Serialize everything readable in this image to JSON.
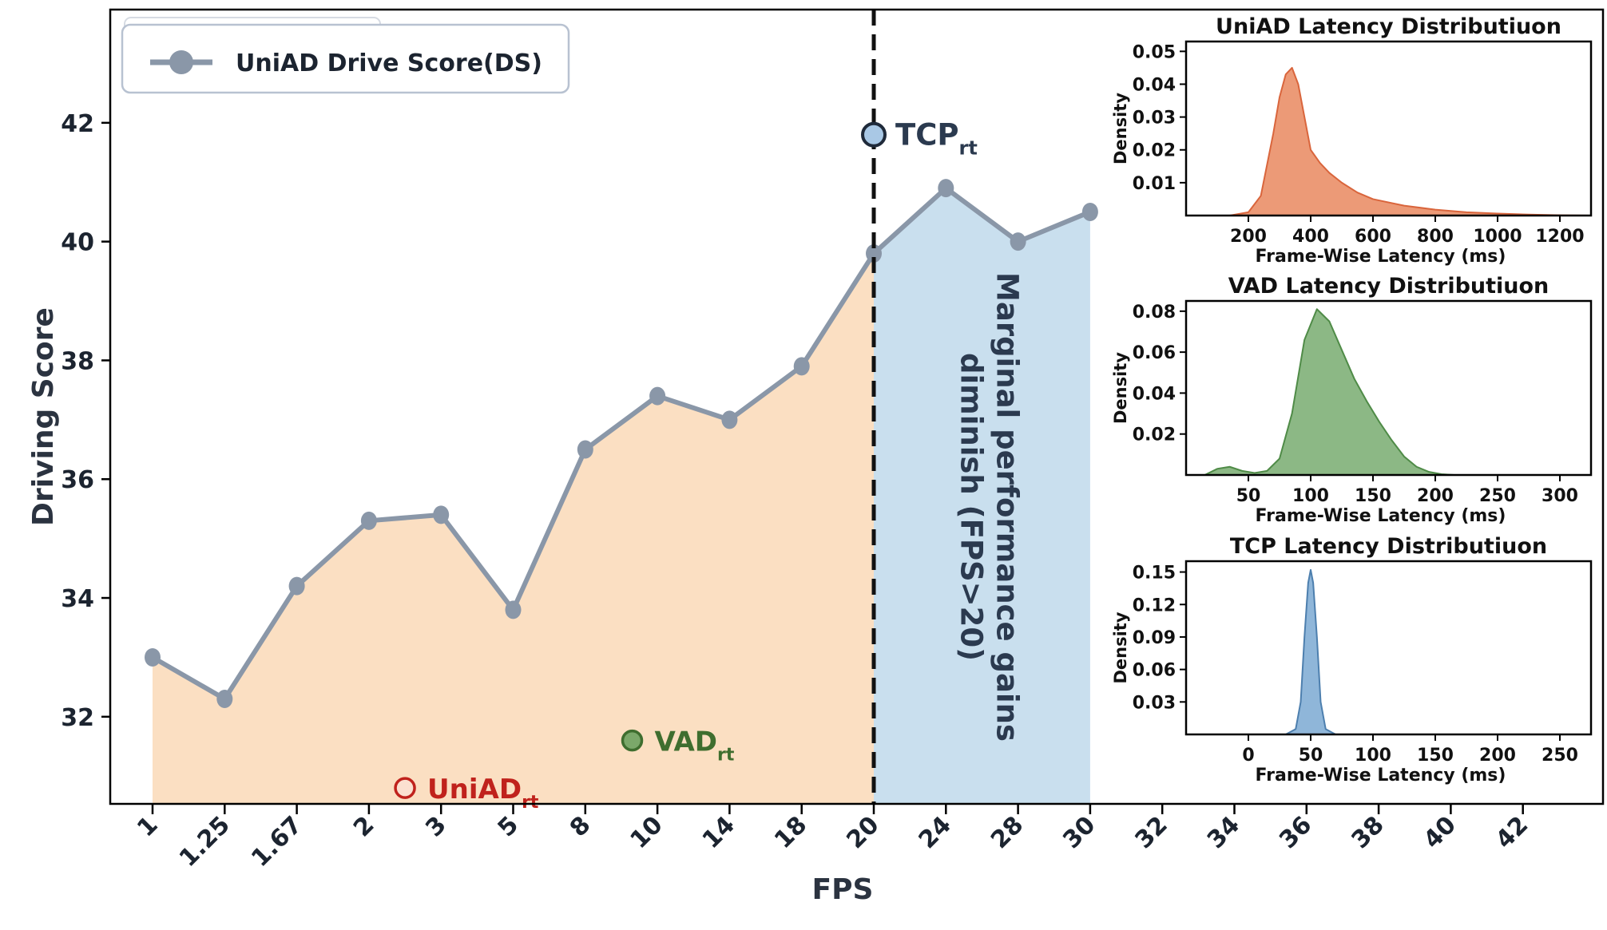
{
  "chart_data": [
    {
      "type": "line",
      "title": "",
      "xlabel": "FPS",
      "ylabel": "Driving Score",
      "x_categories": [
        "1",
        "1.25",
        "1.67",
        "2",
        "3",
        "5",
        "8",
        "10",
        "14",
        "18",
        "20",
        "24",
        "28",
        "30",
        "32",
        "34",
        "36",
        "38",
        "40",
        "42"
      ],
      "yticks": [
        32,
        34,
        36,
        38,
        40,
        42
      ],
      "grid": false,
      "legend": {
        "placement": "top-left",
        "entries": [
          "UniAD Drive Score(DS)"
        ]
      },
      "series": [
        {
          "name": "UniAD Drive Score(DS)",
          "color": "#8a97a8",
          "points": [
            {
              "x": "1",
              "y": 33.0
            },
            {
              "x": "1.25",
              "y": 32.3
            },
            {
              "x": "1.67",
              "y": 34.2
            },
            {
              "x": "2",
              "y": 35.3
            },
            {
              "x": "3",
              "y": 35.4
            },
            {
              "x": "5",
              "y": 33.8
            },
            {
              "x": "8",
              "y": 36.5
            },
            {
              "x": "10",
              "y": 37.4
            },
            {
              "x": "14",
              "y": 37.0
            },
            {
              "x": "18",
              "y": 37.9
            },
            {
              "x": "20",
              "y": 39.8
            },
            {
              "x": "24",
              "y": 40.9
            },
            {
              "x": "28",
              "y": 40.0
            },
            {
              "x": "30",
              "y": 40.5
            }
          ]
        }
      ],
      "markers": [
        {
          "label_main": "TCP",
          "label_sub": "rt",
          "x": "20",
          "y": 41.8,
          "fill": "#a9c8e5",
          "stroke": "#1f2a3a",
          "text_color": "#2b3a4f"
        },
        {
          "label_main": "VAD",
          "label_sub": "rt",
          "x_between": [
            "8",
            "10"
          ],
          "fraction": 0.65,
          "y": 31.6,
          "fill": "#7ba86a",
          "stroke": "#3f6e2f",
          "text_color": "#3f6e2f"
        },
        {
          "label_main": "UniAD",
          "label_sub": "rt",
          "x_between": [
            "2",
            "3"
          ],
          "fraction": 0.5,
          "y": 30.8,
          "fill": "#fbe0d0",
          "stroke": "#c0221c",
          "text_color": "#c0221c"
        }
      ],
      "divider": {
        "x": "20",
        "style": "dashed"
      },
      "regions": [
        {
          "from": "1",
          "to": "20",
          "color": "#fbdfc2"
        },
        {
          "from": "20",
          "to": "30",
          "color": "#c9dfee"
        }
      ],
      "annotation": {
        "line1": "Marginal performance gains",
        "line2": "diminish (FPS>20)"
      }
    },
    {
      "type": "area",
      "title": "UniAD Latency Distributiuon",
      "xlabel": "Frame-Wise Latency (ms)",
      "ylabel": "Density",
      "xticks": [
        200,
        400,
        600,
        800,
        1000,
        1200
      ],
      "yticks": [
        "0.01",
        "0.02",
        "0.03",
        "0.04",
        "0.05"
      ],
      "xlim": [
        0,
        1300
      ],
      "ylim": [
        0,
        0.053
      ],
      "color": "#ec9a77",
      "stroke": "#d9653c",
      "density": {
        "x": [
          140,
          200,
          240,
          280,
          300,
          320,
          340,
          360,
          380,
          400,
          430,
          460,
          500,
          550,
          600,
          700,
          800,
          900,
          1000,
          1100,
          1200,
          1300
        ],
        "y": [
          0,
          0.001,
          0.006,
          0.025,
          0.036,
          0.043,
          0.045,
          0.04,
          0.03,
          0.02,
          0.016,
          0.013,
          0.01,
          0.007,
          0.005,
          0.003,
          0.0018,
          0.001,
          0.0006,
          0.0003,
          0.0001,
          0
        ]
      }
    },
    {
      "type": "area",
      "title": "VAD Latency Distributiuon",
      "xlabel": "Frame-Wise Latency (ms)",
      "ylabel": "Density",
      "xticks": [
        50,
        100,
        150,
        200,
        250,
        300
      ],
      "yticks": [
        "0.02",
        "0.04",
        "0.06",
        "0.08"
      ],
      "xlim": [
        0,
        325
      ],
      "ylim": [
        0,
        0.085
      ],
      "color": "#8cb885",
      "stroke": "#4f8b47",
      "density": {
        "x": [
          15,
          25,
          35,
          45,
          55,
          65,
          75,
          85,
          95,
          105,
          115,
          125,
          135,
          145,
          155,
          165,
          175,
          185,
          195,
          205,
          215
        ],
        "y": [
          0,
          0.003,
          0.004,
          0.002,
          0.001,
          0.002,
          0.008,
          0.03,
          0.066,
          0.081,
          0.075,
          0.061,
          0.047,
          0.036,
          0.026,
          0.017,
          0.009,
          0.004,
          0.0015,
          0.0004,
          0
        ]
      }
    },
    {
      "type": "area",
      "title": "TCP Latency Distributiuon",
      "xlabel": "Frame-Wise Latency (ms)",
      "ylabel": "Density",
      "xticks": [
        0,
        50,
        100,
        150,
        200,
        250
      ],
      "yticks": [
        "0.03",
        "0.06",
        "0.09",
        "0.12",
        "0.15"
      ],
      "xlim": [
        -50,
        275
      ],
      "ylim": [
        0,
        0.16
      ],
      "color": "#8fb6d9",
      "stroke": "#4d7fae",
      "density": {
        "x": [
          30,
          38,
          42,
          45,
          48,
          50,
          52,
          55,
          58,
          62,
          70
        ],
        "y": [
          0,
          0.005,
          0.03,
          0.09,
          0.14,
          0.152,
          0.14,
          0.09,
          0.03,
          0.005,
          0
        ]
      }
    }
  ]
}
